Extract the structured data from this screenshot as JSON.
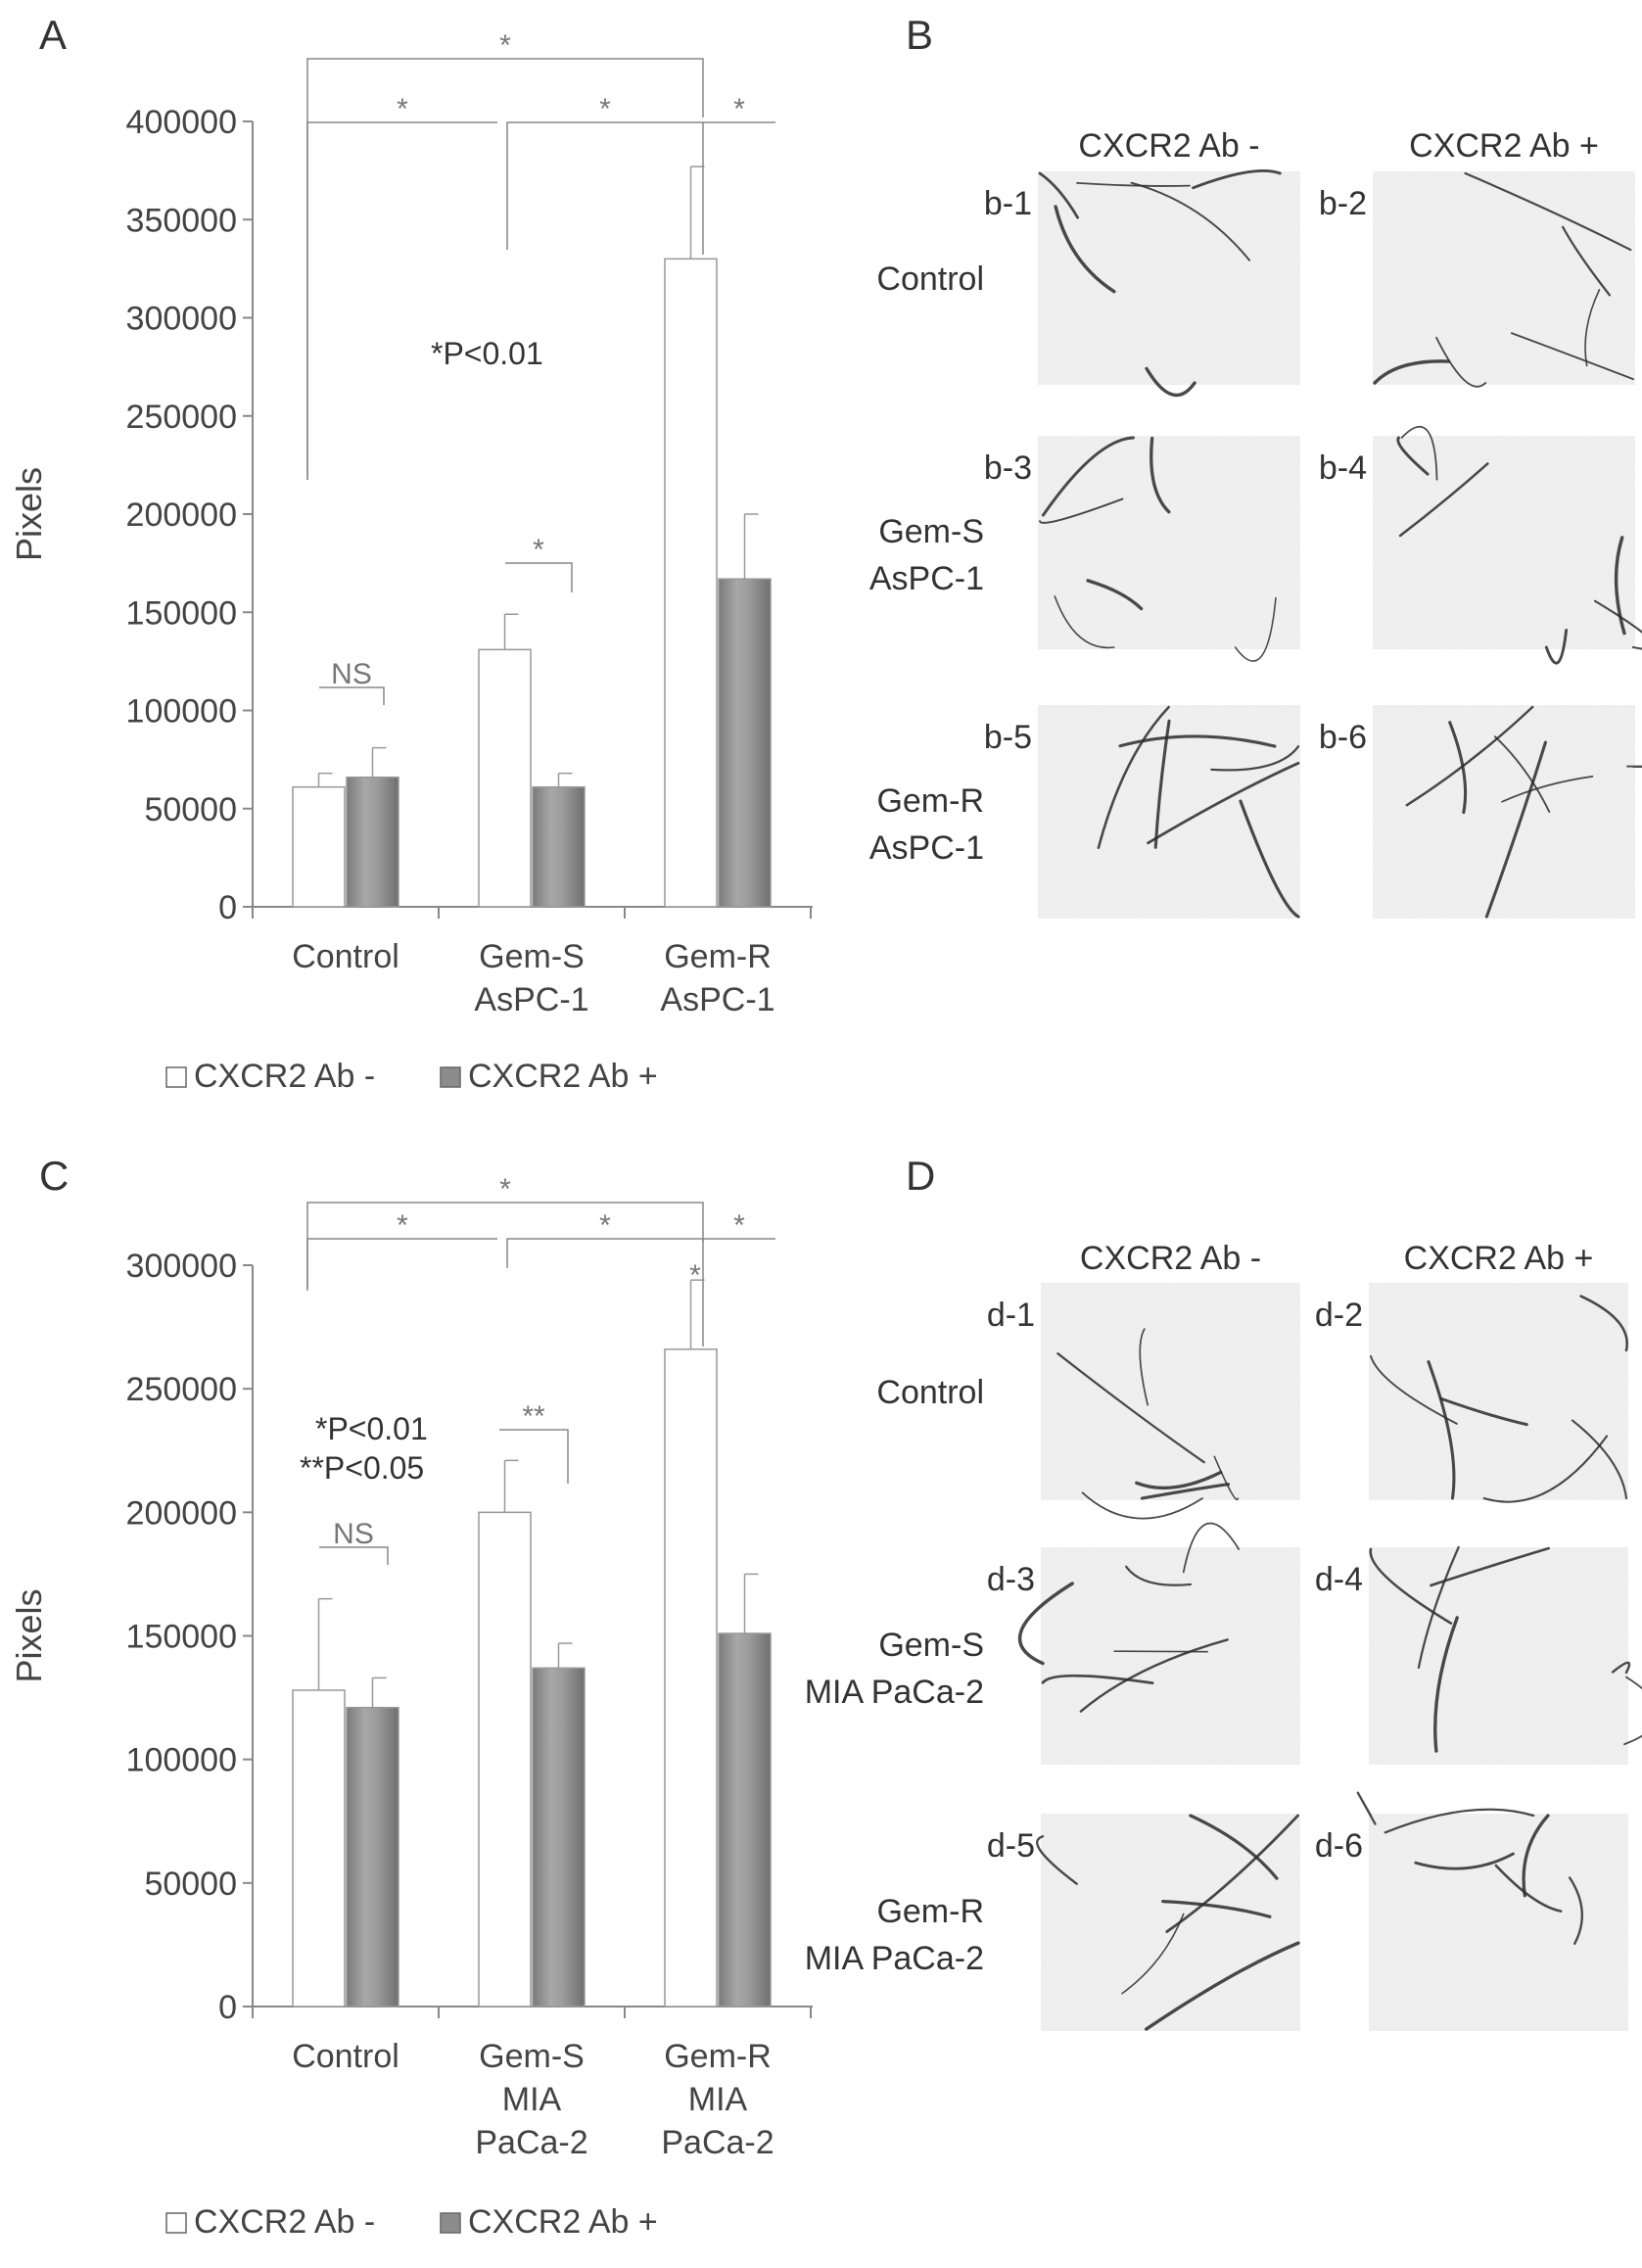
{
  "panels": {
    "A": {
      "letter": "A"
    },
    "B": {
      "letter": "B"
    },
    "C": {
      "letter": "C"
    },
    "D": {
      "letter": "D"
    }
  },
  "chart_data": [
    {
      "type": "bar",
      "panel": "A",
      "ylabel": "Pixels",
      "ylim": [
        0,
        400000
      ],
      "yticks": [
        0,
        50000,
        100000,
        150000,
        200000,
        250000,
        300000,
        350000,
        400000
      ],
      "categories": [
        [
          "Control"
        ],
        [
          "Gem-S",
          "AsPC-1"
        ],
        [
          "Gem-R",
          "AsPC-1"
        ]
      ],
      "series": [
        {
          "name": "CXCR2 Ab -",
          "values": [
            61000,
            131000,
            330000
          ],
          "errors": [
            7000,
            18000,
            47000
          ],
          "color": "#ffffff"
        },
        {
          "name": "CXCR2 Ab +",
          "values": [
            66000,
            61000,
            167000
          ],
          "errors": [
            15000,
            7000,
            33000
          ],
          "color": "#8c8c8c"
        }
      ],
      "annotations": {
        "pvalue": [
          "*P<0.01"
        ],
        "ns": "NS",
        "star": "*"
      },
      "legend": "bottom"
    },
    {
      "type": "bar",
      "panel": "C",
      "ylabel": "Pixels",
      "ylim": [
        0,
        300000
      ],
      "yticks": [
        0,
        50000,
        100000,
        150000,
        200000,
        250000,
        300000
      ],
      "categories": [
        [
          "Control"
        ],
        [
          "Gem-S",
          "MIA",
          "PaCa-2"
        ],
        [
          "Gem-R",
          "MIA",
          "PaCa-2"
        ]
      ],
      "series": [
        {
          "name": "CXCR2 Ab -",
          "values": [
            128000,
            200000,
            266000
          ],
          "errors": [
            37000,
            21000,
            28000
          ],
          "color": "#ffffff"
        },
        {
          "name": "CXCR2 Ab +",
          "values": [
            121000,
            137000,
            151000
          ],
          "errors": [
            12000,
            10000,
            24000
          ],
          "color": "#8c8c8c"
        }
      ],
      "annotations": {
        "pvalue": [
          "*P<0.01",
          "**P<0.05"
        ],
        "ns": "NS",
        "star": "*",
        "dstar": "**"
      },
      "legend": "bottom"
    }
  ],
  "micrographs": {
    "B": {
      "col_headers": [
        "CXCR2 Ab -",
        "CXCR2 Ab +"
      ],
      "rows": [
        {
          "label": [
            "Control"
          ],
          "tags": [
            "b-1",
            "b-2"
          ]
        },
        {
          "label": [
            "Gem-S",
            "AsPC-1"
          ],
          "tags": [
            "b-3",
            "b-4"
          ]
        },
        {
          "label": [
            "Gem-R",
            "AsPC-1"
          ],
          "tags": [
            "b-5",
            "b-6"
          ]
        }
      ]
    },
    "D": {
      "col_headers": [
        "CXCR2 Ab -",
        "CXCR2 Ab +"
      ],
      "rows": [
        {
          "label": [
            "Control"
          ],
          "tags": [
            "d-1",
            "d-2"
          ]
        },
        {
          "label": [
            "Gem-S",
            "MIA PaCa-2"
          ],
          "tags": [
            "d-3",
            "d-4"
          ]
        },
        {
          "label": [
            "Gem-R",
            "MIA PaCa-2"
          ],
          "tags": [
            "d-5",
            "d-6"
          ]
        }
      ]
    }
  }
}
